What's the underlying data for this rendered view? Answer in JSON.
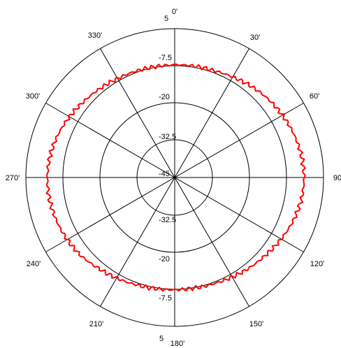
{
  "chart_data": {
    "type": "line",
    "subtype": "polar",
    "title": "",
    "series": [
      {
        "color": "#ff0000",
        "theta": [
          0,
          10,
          20,
          30,
          40,
          50,
          60,
          70,
          80,
          90,
          100,
          110,
          120,
          130,
          140,
          150,
          160,
          170,
          180,
          190,
          200,
          210,
          220,
          230,
          240,
          250,
          260,
          270,
          280,
          290,
          300,
          310,
          320,
          330,
          340,
          350
        ],
        "r": [
          -7.2,
          -7.0,
          -6.8,
          -6.0,
          -5.0,
          -4.0,
          -3.2,
          -2.4,
          -1.8,
          -1.5,
          -1.8,
          -2.6,
          -3.7,
          -4.8,
          -5.6,
          -6.4,
          -7.0,
          -7.3,
          -7.3,
          -7.1,
          -6.7,
          -6.0,
          -5.2,
          -4.0,
          -3.3,
          -2.7,
          -2.3,
          -2.2,
          -2.5,
          -3.2,
          -4.2,
          -5.2,
          -6.0,
          -6.6,
          -7.0,
          -7.2
        ]
      }
    ],
    "angle_ticks": [
      "0'",
      "30'",
      "60'",
      "90",
      "120'",
      "150'",
      "180'",
      "210'",
      "240'",
      "270'",
      "300'",
      "330'"
    ],
    "radial_ticks": [
      "5",
      "-7.5",
      "-20",
      "-32.5",
      "-45"
    ],
    "rlim": [
      -45,
      5
    ],
    "grid": true,
    "angle_direction": "clockwise",
    "zero_location": "top"
  }
}
